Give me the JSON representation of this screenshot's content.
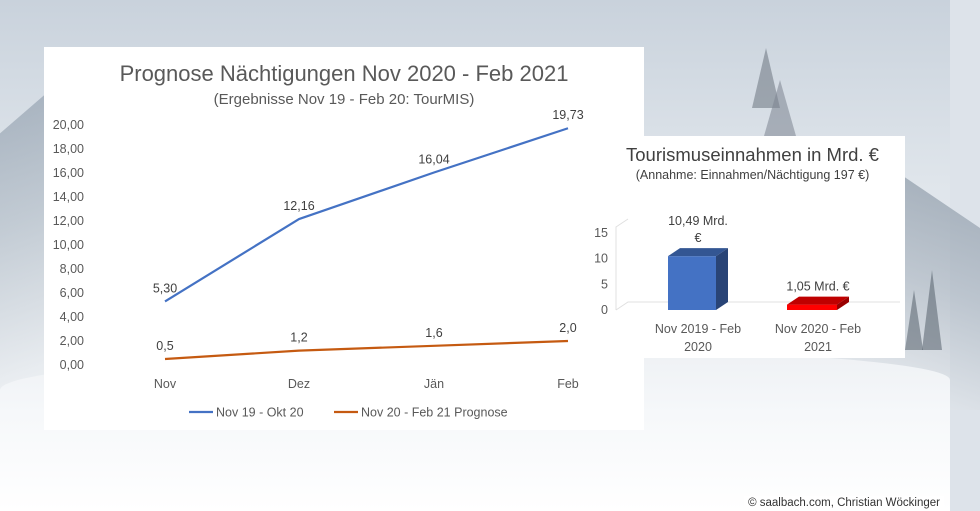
{
  "credit": "© saalbach.com, Christian Wöckinger",
  "line_panel": {
    "title": "Prognose Nächtigungen Nov 2020 - Feb 2021",
    "subtitle": "(Ergebnisse Nov 19 - Feb 20: TourMIS)"
  },
  "bar_panel": {
    "title": "Tourismuseinnahmen in Mrd. €",
    "subtitle": "(Annahme: Einnahmen/Nächtigung 197 €)"
  },
  "chart_data": [
    {
      "type": "line",
      "title": "Prognose Nächtigungen Nov 2020 - Feb 2021",
      "subtitle": "(Ergebnisse Nov 19 - Feb 20: TourMIS)",
      "categories": [
        "Nov",
        "Dez",
        "Jän",
        "Feb"
      ],
      "ylim": [
        0,
        20
      ],
      "yticks": [
        "0,00",
        "2,00",
        "4,00",
        "6,00",
        "8,00",
        "10,00",
        "12,00",
        "14,00",
        "16,00",
        "18,00",
        "20,00"
      ],
      "grid": false,
      "legend": "bottom",
      "series": [
        {
          "name": "Nov 19 - Okt 20",
          "color": "#4472c4",
          "values": [
            5.3,
            12.16,
            16.04,
            19.73
          ],
          "labels": [
            "5,30",
            "12,16",
            "16,04",
            "19,73"
          ]
        },
        {
          "name": "Nov 20 - Feb 21 Prognose",
          "color": "#c55a11",
          "values": [
            0.5,
            1.2,
            1.6,
            2.0
          ],
          "labels": [
            "0,5",
            "1,2",
            "1,6",
            "2,0"
          ]
        }
      ]
    },
    {
      "type": "bar",
      "title": "Tourismuseinnahmen in Mrd. €",
      "subtitle": "(Annahme: Einnahmen/Nächtigung 197 €)",
      "categories": [
        "Nov 2019 - Feb 2020",
        "Nov 2020 - Feb 2021"
      ],
      "category_lines": [
        [
          "Nov 2019 - Feb",
          "2020"
        ],
        [
          "Nov 2020 - Feb",
          "2021"
        ]
      ],
      "values": [
        10.49,
        1.05
      ],
      "data_labels": [
        [
          "10,49 Mrd.",
          "€"
        ],
        [
          "1,05 Mrd. €"
        ]
      ],
      "colors": [
        "#4472c4",
        "#ff0000"
      ],
      "ylim": [
        0,
        15
      ],
      "yticks": [
        "0",
        "5",
        "10",
        "15"
      ],
      "style": "3d"
    }
  ]
}
